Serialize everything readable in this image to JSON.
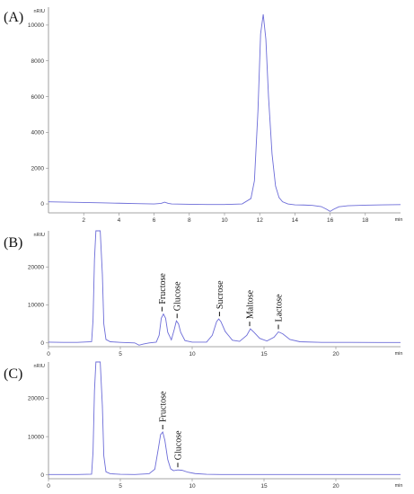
{
  "chart_data": [
    {
      "type": "line",
      "panel_label": "(A)",
      "ylabel": "nRIU",
      "xlabel": "min",
      "xlim": [
        0,
        20
      ],
      "ylim": [
        -500,
        11000
      ],
      "x_ticks": [
        2,
        4,
        6,
        8,
        10,
        12,
        14,
        16,
        18
      ],
      "y_ticks": [
        0,
        2000,
        4000,
        6000,
        8000,
        10000
      ],
      "series": [
        {
          "x": [
            0,
            1,
            2,
            3,
            4,
            5,
            6,
            6.4,
            6.6,
            6.8,
            7,
            8,
            9,
            10,
            11,
            11.5,
            11.7,
            11.9,
            12.05,
            12.2,
            12.35,
            12.5,
            12.7,
            12.9,
            13.1,
            13.3,
            13.6,
            14,
            14.5,
            15,
            15.5,
            15.8,
            16,
            16.2,
            16.5,
            17,
            18,
            19,
            20
          ],
          "y": [
            120,
            100,
            80,
            60,
            40,
            20,
            0,
            30,
            100,
            30,
            0,
            -20,
            -30,
            -30,
            0,
            300,
            1300,
            5200,
            9500,
            10600,
            9200,
            6000,
            2800,
            1000,
            350,
            120,
            0,
            -50,
            -60,
            -80,
            -150,
            -300,
            -420,
            -300,
            -160,
            -100,
            -70,
            -50,
            -40
          ]
        }
      ],
      "annotations": []
    },
    {
      "type": "line",
      "panel_label": "(B)",
      "ylabel": "nRIU",
      "xlabel": "min",
      "xlim": [
        0,
        24.5
      ],
      "ylim": [
        -1000,
        29500
      ],
      "x_ticks": [
        0,
        5,
        10,
        15,
        20
      ],
      "y_ticks": [
        0,
        10000,
        20000
      ],
      "series": [
        {
          "x": [
            0,
            1,
            2,
            3,
            3.1,
            3.2,
            3.3,
            3.45,
            3.6,
            3.75,
            3.85,
            4,
            4.3,
            5,
            6,
            6.3,
            6.6,
            7,
            7.5,
            7.7,
            7.85,
            8,
            8.15,
            8.3,
            8.55,
            8.75,
            8.9,
            9.05,
            9.2,
            9.5,
            10,
            11,
            11.4,
            11.7,
            11.85,
            12,
            12.3,
            12.8,
            13.3,
            13.8,
            14.05,
            14.3,
            14.7,
            15.2,
            15.7,
            16,
            16.3,
            16.8,
            17.5,
            19,
            21,
            23,
            24.5
          ],
          "y": [
            200,
            150,
            150,
            300,
            6000,
            22000,
            29500,
            29500,
            29500,
            18000,
            5000,
            900,
            300,
            150,
            0,
            -600,
            -300,
            0,
            200,
            2000,
            6500,
            7600,
            6500,
            2800,
            800,
            3500,
            5800,
            5000,
            2800,
            600,
            200,
            200,
            2000,
            5600,
            6300,
            5600,
            3000,
            700,
            400,
            2000,
            3700,
            2800,
            1200,
            500,
            1500,
            2900,
            2400,
            900,
            300,
            150,
            150,
            100,
            100
          ]
        }
      ],
      "annotations": [
        {
          "label": "Fructose",
          "x": 7.9,
          "y": 7600
        },
        {
          "label": "Glucose",
          "x": 8.95,
          "y": 5800
        },
        {
          "label": "Sucrose",
          "x": 11.9,
          "y": 6300
        },
        {
          "label": "Maltose",
          "x": 14.0,
          "y": 3700
        },
        {
          "label": "Lactose",
          "x": 16.0,
          "y": 2900
        }
      ]
    },
    {
      "type": "line",
      "panel_label": "(C)",
      "ylabel": "nRIU",
      "xlabel": "min",
      "xlim": [
        0,
        24.5
      ],
      "ylim": [
        -1000,
        29500
      ],
      "x_ticks": [
        0,
        5,
        10,
        15,
        20
      ],
      "y_ticks": [
        0,
        10000,
        20000
      ],
      "series": [
        {
          "x": [
            0,
            1,
            2,
            3,
            3.1,
            3.2,
            3.3,
            3.45,
            3.6,
            3.75,
            3.85,
            4,
            4.3,
            5,
            6,
            7,
            7.4,
            7.65,
            7.8,
            7.95,
            8.1,
            8.3,
            8.5,
            8.7,
            9,
            9.3,
            9.7,
            10.2,
            11,
            12,
            14,
            16,
            18,
            20,
            22,
            24.5
          ],
          "y": [
            100,
            100,
            100,
            200,
            6000,
            22000,
            29500,
            29500,
            29500,
            18000,
            5000,
            800,
            300,
            150,
            100,
            300,
            1500,
            7000,
            10500,
            11200,
            9000,
            4000,
            1600,
            1100,
            1300,
            1200,
            700,
            350,
            150,
            100,
            100,
            100,
            100,
            100,
            100,
            100
          ]
        }
      ],
      "annotations": [
        {
          "label": "Fructose",
          "x": 7.95,
          "y": 11200
        },
        {
          "label": "Glucose",
          "x": 9.0,
          "y": 1300
        }
      ]
    }
  ]
}
